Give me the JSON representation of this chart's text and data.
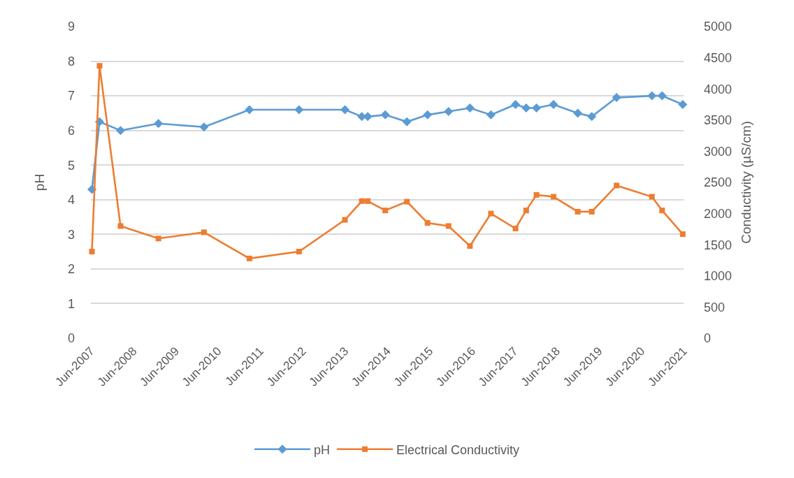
{
  "chart_data": {
    "type": "line",
    "x": [
      "2007-06-10",
      "2007-08-15",
      "2008-02-12",
      "2009-01-04",
      "2010-02-01",
      "2011-02-28",
      "2012-05-01",
      "2013-06-01",
      "2013-10-25",
      "2013-12-15",
      "2014-05-15",
      "2014-11-18",
      "2015-05-15",
      "2015-11-12",
      "2016-05-15",
      "2016-11-12",
      "2017-06-12",
      "2017-09-12",
      "2017-12-10",
      "2018-05-06",
      "2018-12-01",
      "2019-04-01",
      "2019-11-01",
      "2020-09-01",
      "2020-11-28",
      "2021-05-25"
    ],
    "series": [
      {
        "name": "pH",
        "color": "#5b9bd5",
        "marker": "diamond",
        "values": [
          4.3,
          6.25,
          6.0,
          6.2,
          6.1,
          6.6,
          6.6,
          6.6,
          6.4,
          6.4,
          6.45,
          6.25,
          6.45,
          6.55,
          6.65,
          6.45,
          6.75,
          6.65,
          6.65,
          6.75,
          6.5,
          6.4,
          6.95,
          7.0,
          7.0,
          6.75
        ]
      },
      {
        "name": "Electrical Conductivity",
        "color": "#ed7d31",
        "marker": "square",
        "axis": "y2",
        "values": [
          1390,
          4370,
          1800,
          1600,
          1700,
          1280,
          1390,
          1900,
          2200,
          2200,
          2050,
          2190,
          1850,
          1800,
          1480,
          2000,
          1760,
          2050,
          2300,
          2270,
          2030,
          2030,
          2450,
          2270,
          2050,
          1670
        ]
      }
    ],
    "ylabel": "pH",
    "y2label": "Conductivity (µS/cm)",
    "xlim": [
      "2007-06-01",
      "2021-06-01"
    ],
    "xticks": [
      {
        "value": "2007-06-01",
        "label": "Jun-2007"
      },
      {
        "value": "2008-06-01",
        "label": "Jun-2008"
      },
      {
        "value": "2009-06-01",
        "label": "Jun-2009"
      },
      {
        "value": "2010-06-01",
        "label": "Jun-2010"
      },
      {
        "value": "2011-06-01",
        "label": "Jun-2011"
      },
      {
        "value": "2012-06-01",
        "label": "Jun-2012"
      },
      {
        "value": "2013-06-01",
        "label": "Jun-2013"
      },
      {
        "value": "2014-06-01",
        "label": "Jun-2014"
      },
      {
        "value": "2015-06-01",
        "label": "Jun-2015"
      },
      {
        "value": "2016-06-01",
        "label": "Jun-2016"
      },
      {
        "value": "2017-06-01",
        "label": "Jun-2017"
      },
      {
        "value": "2018-06-01",
        "label": "Jun-2018"
      },
      {
        "value": "2019-06-01",
        "label": "Jun-2019"
      },
      {
        "value": "2020-06-01",
        "label": "Jun-2020"
      },
      {
        "value": "2021-06-01",
        "label": "Jun-2021"
      }
    ],
    "ylim": [
      0,
      9
    ],
    "yticks": [
      0,
      1,
      2,
      3,
      4,
      5,
      6,
      7,
      8,
      9
    ],
    "y2lim": [
      0,
      5000
    ],
    "y2ticks": [
      0,
      500,
      1000,
      1500,
      2000,
      2500,
      3000,
      3500,
      4000,
      4500,
      5000
    ],
    "grid": "y",
    "legend": "bottom",
    "line_style": "solid"
  }
}
